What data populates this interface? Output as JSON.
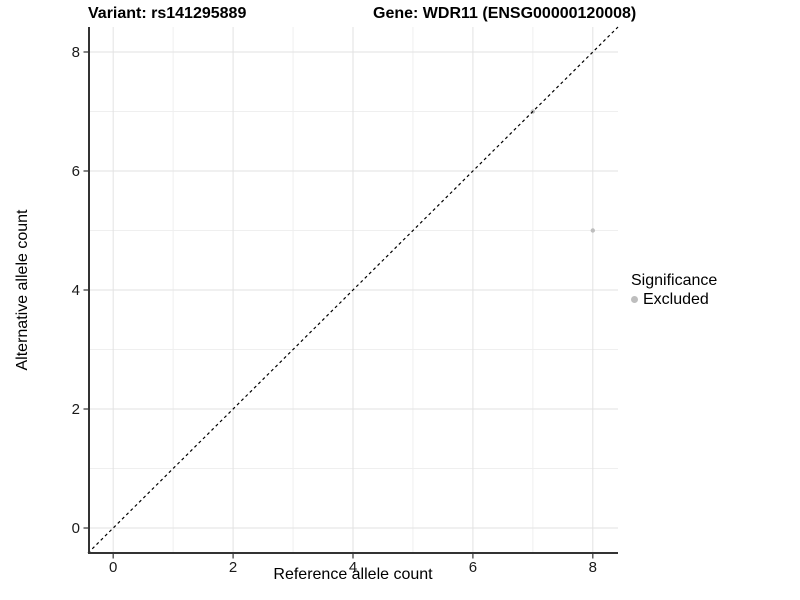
{
  "titles": {
    "variant": "Variant: rs141295889",
    "gene": "Gene: WDR11 (ENSG00000120008)"
  },
  "chart_data": {
    "type": "scatter",
    "title_left": "Variant: rs141295889",
    "title_right": "Gene: WDR11 (ENSG00000120008)",
    "xlabel": "Reference allele count",
    "ylabel": "Alternative allele count",
    "xlim": [
      -0.42,
      8.42
    ],
    "ylim": [
      -0.42,
      8.42
    ],
    "xticks": [
      0,
      2,
      4,
      6,
      8
    ],
    "yticks": [
      0,
      2,
      4,
      6,
      8
    ],
    "xticks_minor": [
      1,
      3,
      5,
      7
    ],
    "yticks_minor": [
      1,
      3,
      5,
      7
    ],
    "grid": {
      "on": true,
      "major_color": "#e2e2e2",
      "minor_color": "#efefef"
    },
    "identity_line": {
      "style": "dashed",
      "slope": 1,
      "intercept": 0,
      "color": "#000000"
    },
    "series": [
      {
        "name": "Excluded",
        "color": "#bebebe",
        "points": [
          {
            "x": 7,
            "y": 7
          },
          {
            "x": 8,
            "y": 5
          }
        ]
      }
    ],
    "legend": {
      "title": "Significance",
      "position": "right",
      "items": [
        {
          "label": "Excluded",
          "color": "#bebebe"
        }
      ]
    }
  },
  "style_colors": {
    "axis_line": "#333333",
    "tick_label": "#1a1a1a",
    "point": "#bebebe"
  }
}
